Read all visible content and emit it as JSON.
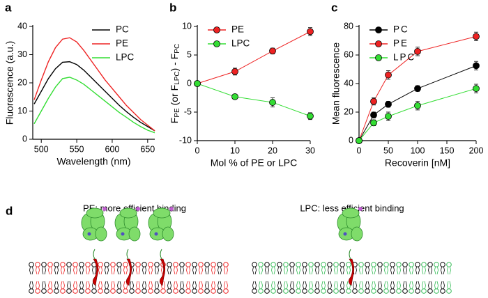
{
  "chart_data": [
    {
      "type": "line",
      "panel_label": "a",
      "xlabel": "Wavelength (nm)",
      "ylabel": "Fluorescence (a.u.)",
      "x": [
        490,
        500,
        510,
        520,
        530,
        540,
        550,
        560,
        570,
        580,
        590,
        600,
        610,
        620,
        630,
        640,
        650,
        660
      ],
      "series": [
        {
          "name": "PC",
          "color": "#000000",
          "values": [
            12.5,
            17,
            21.5,
            25,
            27.3,
            27.5,
            26.5,
            24.5,
            22,
            19.5,
            17,
            14.5,
            12,
            9.8,
            7.8,
            6,
            4.5,
            3
          ]
        },
        {
          "name": "PE",
          "color": "#ee2222",
          "values": [
            14,
            21,
            27.5,
            32.5,
            35.5,
            36,
            34.5,
            31.5,
            28,
            24.5,
            21,
            18,
            15,
            12,
            9.5,
            7,
            5,
            3
          ]
        },
        {
          "name": "LPC",
          "color": "#33dd33",
          "values": [
            5.5,
            10,
            14.5,
            18.5,
            21.5,
            22,
            21,
            19.5,
            17.5,
            15.5,
            13.5,
            11.5,
            9.5,
            7.8,
            6,
            4.5,
            3.2,
            2.3
          ]
        }
      ],
      "xlim": [
        488,
        660
      ],
      "xticks": [
        500,
        550,
        600,
        650
      ],
      "ylim": [
        0,
        40
      ],
      "yticks": [
        0,
        10,
        20,
        30,
        40
      ],
      "legend": "upper right"
    },
    {
      "type": "line",
      "panel_label": "b",
      "xlabel": "Mol % of PE or LPC",
      "ylabel": [
        "F",
        "PE",
        " (or F",
        "LPC",
        ") - F",
        "PC"
      ],
      "x": [
        0,
        10,
        20,
        30
      ],
      "markers": true,
      "series": [
        {
          "name": "PE",
          "color": "#ee2222",
          "values": [
            0,
            2.1,
            5.7,
            9.1
          ],
          "errors": [
            0,
            0.6,
            0.5,
            0.7
          ]
        },
        {
          "name": "LPC",
          "color": "#33dd33",
          "values": [
            0,
            -2.3,
            -3.3,
            -5.7
          ],
          "errors": [
            0,
            0.4,
            0.8,
            0.6
          ]
        }
      ],
      "xlim": [
        0,
        30
      ],
      "xticks": [
        0,
        10,
        20,
        30
      ],
      "ylim": [
        -10,
        10
      ],
      "yticks": [
        -10,
        -5,
        0,
        5,
        10
      ],
      "legend": "upper left"
    },
    {
      "type": "line",
      "panel_label": "c",
      "xlabel": "Recoverin [nM]",
      "ylabel": "Mean fluorescence",
      "x": [
        0,
        25,
        50,
        100,
        200
      ],
      "markers": true,
      "series": [
        {
          "name": "PC",
          "color": "#000000",
          "values": [
            0,
            18,
            25.5,
            36.5,
            52.5
          ],
          "errors": [
            0,
            2,
            2,
            2,
            3
          ]
        },
        {
          "name": "PE",
          "color": "#ee2222",
          "values": [
            0,
            27.5,
            46,
            62.5,
            73
          ],
          "errors": [
            0,
            2.5,
            3,
            3,
            3
          ]
        },
        {
          "name": "LPC",
          "color": "#33dd33",
          "values": [
            0,
            12.5,
            17,
            24.5,
            36.5
          ],
          "errors": [
            0,
            2,
            3,
            3,
            3
          ]
        }
      ],
      "xlim": [
        0,
        200
      ],
      "xticks": [
        0,
        50,
        100,
        150,
        200
      ],
      "ylim": [
        0,
        80
      ],
      "yticks": [
        0,
        20,
        40,
        60,
        80
      ],
      "legend": "upper left"
    }
  ],
  "diagram": {
    "panel_label": "d",
    "captions": [
      "PE: more efficient binding",
      "LPC: less efficient binding"
    ]
  }
}
